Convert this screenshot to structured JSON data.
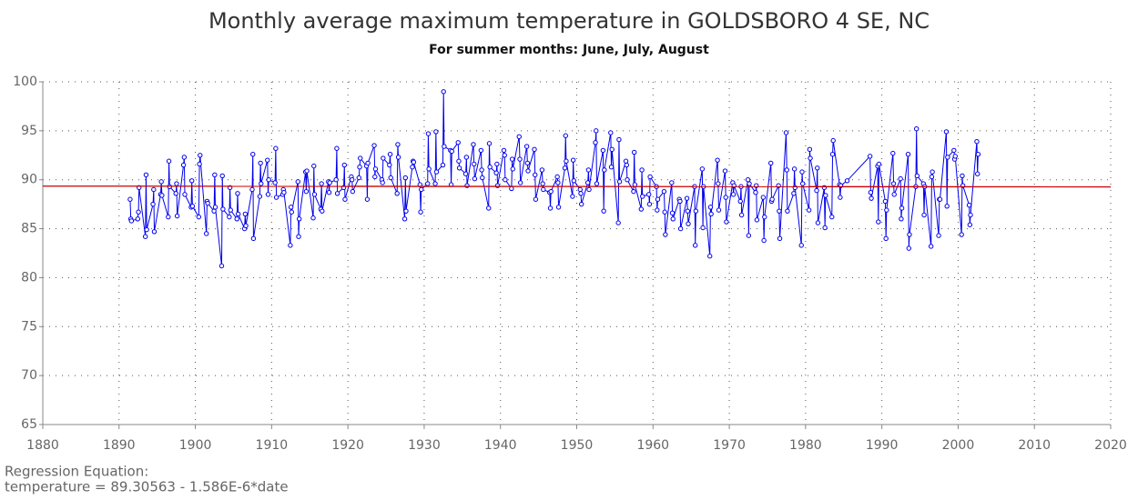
{
  "chart_data": {
    "type": "line",
    "title": "Monthly average maximum temperature in GOLDSBORO 4 SE, NC",
    "subtitle": "For summer months: June, July, August",
    "annotations": [
      "Regression Equation:",
      "temperature =  89.30563 - 1.586E-6*date"
    ],
    "xlim": [
      1880,
      2020
    ],
    "xticks": [
      1880,
      1890,
      1900,
      1910,
      1920,
      1930,
      1940,
      1950,
      1960,
      1970,
      1980,
      1990,
      2000,
      2010,
      2020
    ],
    "ylim": [
      65,
      100
    ],
    "yticks": [
      65,
      70,
      75,
      80,
      85,
      90,
      95,
      100
    ],
    "grid": true,
    "series": [
      {
        "color": "#0000ee",
        "markers": true,
        "x": [
          1891.45,
          1891.54,
          1891.62,
          1892.45,
          1892.54,
          1892.62,
          1893.45,
          1893.54,
          1893.62,
          1894.45,
          1894.54,
          1894.62,
          1895.45,
          1895.54,
          1895.62,
          1896.45,
          1896.54,
          1896.62,
          1897.45,
          1897.54,
          1897.62,
          1898.45,
          1898.54,
          1898.62,
          1899.45,
          1899.54,
          1899.62,
          1900.45,
          1900.54,
          1900.62,
          1901.45,
          1901.54,
          1901.62,
          1902.45,
          1902.54,
          1902.62,
          1903.45,
          1903.54,
          1903.62,
          1904.45,
          1904.54,
          1904.62,
          1905.45,
          1905.54,
          1905.62,
          1906.45,
          1906.54,
          1906.62,
          1907.45,
          1907.54,
          1907.62,
          1908.45,
          1908.54,
          1908.62,
          1909.45,
          1909.54,
          1909.62,
          1910.45,
          1910.54,
          1910.62,
          1911.45,
          1911.54,
          1911.62,
          1912.45,
          1912.54,
          1912.62,
          1913.45,
          1913.54,
          1913.62,
          1914.45,
          1914.54,
          1914.62,
          1915.45,
          1915.54,
          1915.62,
          1916.45,
          1916.54,
          1916.62,
          1917.45,
          1917.54,
          1917.62,
          1918.45,
          1918.54,
          1918.62,
          1919.45,
          1919.54,
          1919.62,
          1920.45,
          1920.54,
          1920.62,
          1921.45,
          1921.54,
          1921.62,
          1922.45,
          1922.54,
          1922.62,
          1923.45,
          1923.54,
          1923.62,
          1924.45,
          1924.54,
          1924.62,
          1925.45,
          1925.54,
          1925.62,
          1926.45,
          1926.54,
          1926.62,
          1927.45,
          1927.54,
          1927.62,
          1928.45,
          1928.54,
          1928.62,
          1929.45,
          1929.54,
          1929.62,
          1930.45,
          1930.54,
          1930.62,
          1931.45,
          1931.54,
          1931.62,
          1932.45,
          1932.54,
          1932.62,
          1933.45,
          1933.54,
          1933.62,
          1934.45,
          1934.54,
          1934.62,
          1935.45,
          1935.54,
          1935.62,
          1936.45,
          1936.54,
          1936.62,
          1937.45,
          1937.54,
          1937.62,
          1938.45,
          1938.54,
          1938.62,
          1939.45,
          1939.54,
          1939.62,
          1940.45,
          1940.54,
          1940.62,
          1941.45,
          1941.54,
          1941.62,
          1942.45,
          1942.54,
          1942.62,
          1943.45,
          1943.54,
          1943.62,
          1944.45,
          1944.54,
          1944.62,
          1945.45,
          1945.54,
          1945.62,
          1946.45,
          1946.54,
          1946.62,
          1947.45,
          1947.54,
          1947.62,
          1948.45,
          1948.54,
          1948.62,
          1949.45,
          1949.54,
          1949.62,
          1950.45,
          1950.54,
          1950.62,
          1951.45,
          1951.54,
          1951.62,
          1952.45,
          1952.54,
          1952.62,
          1953.45,
          1953.54,
          1953.62,
          1954.45,
          1954.54,
          1954.62,
          1955.45,
          1955.54,
          1955.62,
          1956.45,
          1956.54,
          1956.62,
          1957.45,
          1957.54,
          1957.62,
          1958.45,
          1958.54,
          1958.62,
          1959.45,
          1959.54,
          1959.62,
          1960.45,
          1960.54,
          1960.62,
          1961.45,
          1961.54,
          1961.62,
          1962.45,
          1962.54,
          1962.62,
          1963.45,
          1963.54,
          1963.62,
          1964.45,
          1964.54,
          1964.62,
          1965.45,
          1965.54,
          1965.62,
          1966.45,
          1966.54,
          1966.62,
          1967.45,
          1967.54,
          1967.62,
          1968.45,
          1968.54,
          1968.62,
          1969.45,
          1969.54,
          1969.62,
          1970.45,
          1970.54,
          1970.62,
          1971.45,
          1971.54,
          1971.62,
          1972.45,
          1972.54,
          1972.62,
          1973.45,
          1973.54,
          1973.62,
          1974.45,
          1974.54,
          1974.62,
          1975.45,
          1975.54,
          1975.62,
          1976.45,
          1976.54,
          1976.62,
          1977.45,
          1977.54,
          1977.62,
          1978.45,
          1978.54,
          1978.62,
          1979.45,
          1979.54,
          1979.62,
          1980.45,
          1980.54,
          1980.62,
          1981.45,
          1981.54,
          1981.62,
          1982.45,
          1982.54,
          1982.62,
          1983.45,
          1983.54,
          1983.62,
          1984.45,
          1984.54,
          1984.62,
          1985.45,
          1988.45,
          1988.54,
          1988.62,
          1989.45,
          1989.54,
          1989.62,
          1990.45,
          1990.54,
          1990.62,
          1991.45,
          1991.54,
          1991.62,
          1992.45,
          1992.54,
          1992.62,
          1993.45,
          1993.54,
          1993.62,
          1994.45,
          1994.54,
          1994.62,
          1995.45,
          1995.54,
          1995.62,
          1996.45,
          1996.54,
          1996.62,
          1997.45,
          1997.54,
          1997.62,
          1998.45,
          1998.54,
          1998.62,
          1999.45,
          1999.54,
          1999.62,
          2000.45,
          2000.54,
          2000.62,
          2001.45,
          2001.54,
          2001.62,
          2002.45,
          2002.54,
          2002.62
        ],
        "values": [
          88.0,
          86.0,
          85.8,
          86.0,
          86.7,
          89.2,
          84.2,
          90.5,
          84.9,
          87.5,
          89.0,
          84.7,
          88.5,
          89.8,
          88.4,
          86.2,
          91.9,
          89.3,
          88.6,
          89.6,
          86.3,
          91.5,
          92.3,
          88.5,
          87.2,
          89.9,
          87.3,
          86.2,
          91.6,
          92.5,
          84.5,
          87.8,
          87.6,
          86.8,
          90.5,
          87.2,
          81.2,
          90.4,
          87.0,
          86.2,
          89.2,
          86.9,
          86.0,
          88.6,
          86.5,
          85.0,
          86.5,
          85.3,
          89.0,
          92.6,
          84.0,
          88.3,
          91.7,
          89.6,
          92.0,
          88.5,
          90.0,
          89.7,
          93.2,
          88.2,
          88.5,
          89.0,
          88.7,
          83.3,
          87.2,
          86.7,
          89.8,
          84.2,
          86.0,
          90.8,
          88.8,
          90.9,
          86.1,
          91.4,
          88.5,
          87.0,
          89.6,
          86.8,
          89.8,
          88.7,
          89.7,
          90.0,
          93.2,
          88.6,
          89.2,
          91.5,
          88.0,
          90.3,
          90.0,
          88.8,
          90.2,
          91.3,
          92.2,
          91.4,
          88.0,
          91.7,
          93.5,
          90.3,
          91.1,
          90.0,
          89.7,
          92.2,
          91.5,
          92.6,
          90.2,
          88.6,
          93.6,
          92.3,
          86.0,
          90.2,
          86.8,
          91.3,
          91.9,
          91.8,
          89.5,
          86.7,
          89.0,
          89.6,
          94.7,
          91.1,
          89.6,
          94.9,
          90.8,
          91.5,
          99.0,
          93.4,
          93.0,
          89.5,
          92.9,
          93.8,
          91.9,
          91.2,
          90.6,
          92.3,
          89.4,
          93.6,
          91.6,
          90.1,
          93.0,
          91.0,
          90.2,
          87.1,
          93.7,
          91.3,
          90.7,
          91.6,
          89.4,
          93.0,
          92.5,
          90.0,
          89.1,
          92.1,
          91.1,
          94.4,
          92.1,
          89.7,
          93.4,
          91.7,
          90.9,
          93.1,
          90.5,
          88.0,
          91.0,
          89.6,
          89.0,
          88.7,
          87.1,
          88.8,
          90.3,
          89.7,
          87.2,
          91.2,
          94.5,
          91.9,
          88.3,
          92.0,
          89.9,
          89.0,
          88.6,
          87.5,
          89.7,
          91.0,
          89.0,
          93.8,
          95.0,
          89.6,
          93.0,
          86.8,
          91.0,
          94.8,
          91.3,
          93.1,
          85.6,
          94.1,
          89.8,
          91.9,
          91.5,
          90.0,
          88.8,
          92.8,
          89.5,
          87.0,
          91.0,
          88.3,
          88.5,
          87.5,
          90.3,
          89.3,
          86.9,
          88.0,
          88.8,
          86.7,
          84.4,
          89.7,
          86.6,
          86.0,
          88.0,
          87.8,
          85.0,
          88.1,
          86.8,
          85.5,
          89.3,
          83.3,
          86.8,
          91.1,
          85.1,
          89.3,
          82.2,
          87.2,
          86.5,
          92.0,
          89.6,
          86.9,
          90.9,
          88.2,
          85.7,
          89.7,
          88.5,
          89.4,
          87.8,
          89.3,
          86.4,
          90.0,
          84.3,
          89.6,
          88.7,
          89.4,
          85.9,
          88.2,
          83.8,
          86.2,
          91.7,
          87.8,
          88.0,
          89.4,
          86.8,
          84.0,
          94.8,
          91.0,
          86.8,
          88.6,
          91.1,
          89.2,
          83.3,
          90.8,
          89.6,
          86.9,
          93.1,
          92.2,
          88.9,
          91.2,
          85.6,
          89.2,
          85.1,
          88.4,
          86.2,
          92.6,
          94.0,
          89.5,
          88.2,
          89.4,
          89.9,
          92.4,
          88.7,
          88.1,
          91.4,
          85.7,
          91.6,
          87.8,
          84.0,
          86.9,
          92.7,
          89.6,
          88.5,
          90.1,
          86.0,
          87.1,
          92.6,
          83.0,
          84.4,
          89.3,
          95.2,
          90.4,
          89.6,
          86.4,
          89.3,
          83.2,
          90.3,
          90.8,
          84.3,
          88.0,
          88.0,
          94.9,
          87.3,
          92.3,
          93.0,
          92.1,
          92.4,
          84.4,
          90.4,
          89.4,
          87.4,
          85.4,
          86.4,
          93.9,
          90.6,
          92.6
        ]
      },
      {
        "color": "#cc0000",
        "markers": false,
        "x": [
          1880,
          2020
        ],
        "values": [
          89.35,
          89.27
        ]
      }
    ]
  }
}
